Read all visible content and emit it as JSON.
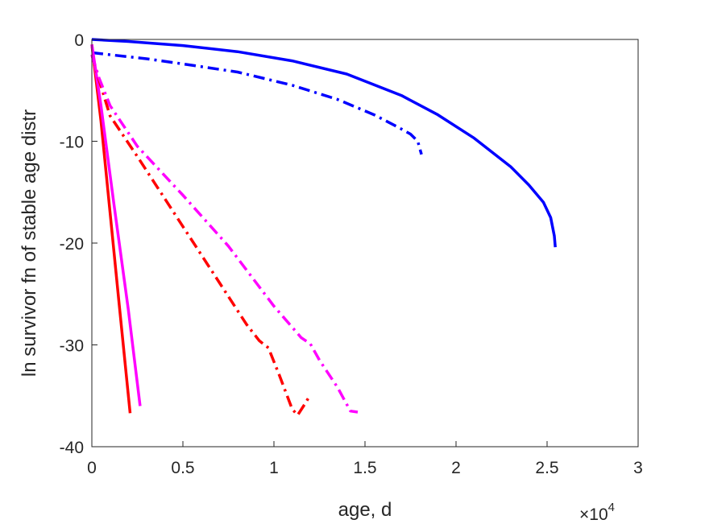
{
  "chart_data": {
    "type": "line",
    "xlabel": "age, d",
    "ylabel": "ln survivor fn of stable age distr",
    "x_exponent_label": {
      "base": "×10",
      "power": "4"
    },
    "xlim": [
      0,
      30000
    ],
    "ylim": [
      -40,
      0
    ],
    "xticks": [
      0,
      5000,
      10000,
      15000,
      20000,
      25000,
      30000
    ],
    "xtick_labels": [
      "0",
      "0.5",
      "1",
      "1.5",
      "2",
      "2.5",
      "3"
    ],
    "yticks": [
      0,
      -10,
      -20,
      -30,
      -40
    ],
    "ytick_labels": [
      "0",
      "-10",
      "-20",
      "-30",
      "-40"
    ],
    "grid": false,
    "box": true,
    "series": [
      {
        "color": "#0000ff",
        "style": "solid",
        "x": [
          0,
          2000,
          5000,
          8000,
          11000,
          14000,
          17000,
          19000,
          21000,
          23000,
          24000,
          24800,
          25200,
          25400,
          25450
        ],
        "y": [
          0,
          -0.2,
          -0.6,
          -1.2,
          -2.1,
          -3.4,
          -5.5,
          -7.4,
          -9.7,
          -12.5,
          -14.3,
          -16.0,
          -17.5,
          -19.3,
          -20.4
        ]
      },
      {
        "color": "#0000ff",
        "style": "dashdot",
        "x": [
          0,
          1000,
          3000,
          5000,
          8000,
          11000,
          13500,
          15500,
          16800,
          17500,
          17900,
          18100
        ],
        "y": [
          -1.3,
          -1.5,
          -1.9,
          -2.4,
          -3.2,
          -4.5,
          -5.9,
          -7.4,
          -8.6,
          -9.3,
          -10.0,
          -11.3
        ]
      },
      {
        "color": "#ff0000",
        "style": "solid",
        "x": [
          0,
          500,
          1000,
          1500,
          2100
        ],
        "y": [
          -0.5,
          -8,
          -17,
          -26,
          -36.7
        ]
      },
      {
        "color": "#ff00ff",
        "style": "solid",
        "x": [
          0,
          500,
          1200,
          2000,
          2650
        ],
        "y": [
          -0.5,
          -6.5,
          -16,
          -26.5,
          -36.0
        ]
      },
      {
        "color": "#ff0000",
        "style": "dashdot",
        "x": [
          0,
          400,
          1000,
          2500,
          4500,
          6500,
          8500,
          9200,
          9700,
          10300,
          11000,
          11300,
          11700,
          11900
        ],
        "y": [
          -1.5,
          -4.0,
          -7.5,
          -11.5,
          -17.0,
          -22.5,
          -28.0,
          -29.6,
          -30.3,
          -33.0,
          -36.3,
          -36.9,
          -35.8,
          -35.2
        ]
      },
      {
        "color": "#ff00ff",
        "style": "dashdot",
        "x": [
          0,
          400,
          1000,
          2500,
          5000,
          7500,
          10000,
          11500,
          12000,
          12500,
          13500,
          14200,
          14600
        ],
        "y": [
          -1.5,
          -3.8,
          -6.5,
          -10.5,
          -15.3,
          -20.3,
          -26.2,
          -29.3,
          -29.9,
          -31.5,
          -34.2,
          -36.5,
          -36.6
        ]
      }
    ]
  }
}
